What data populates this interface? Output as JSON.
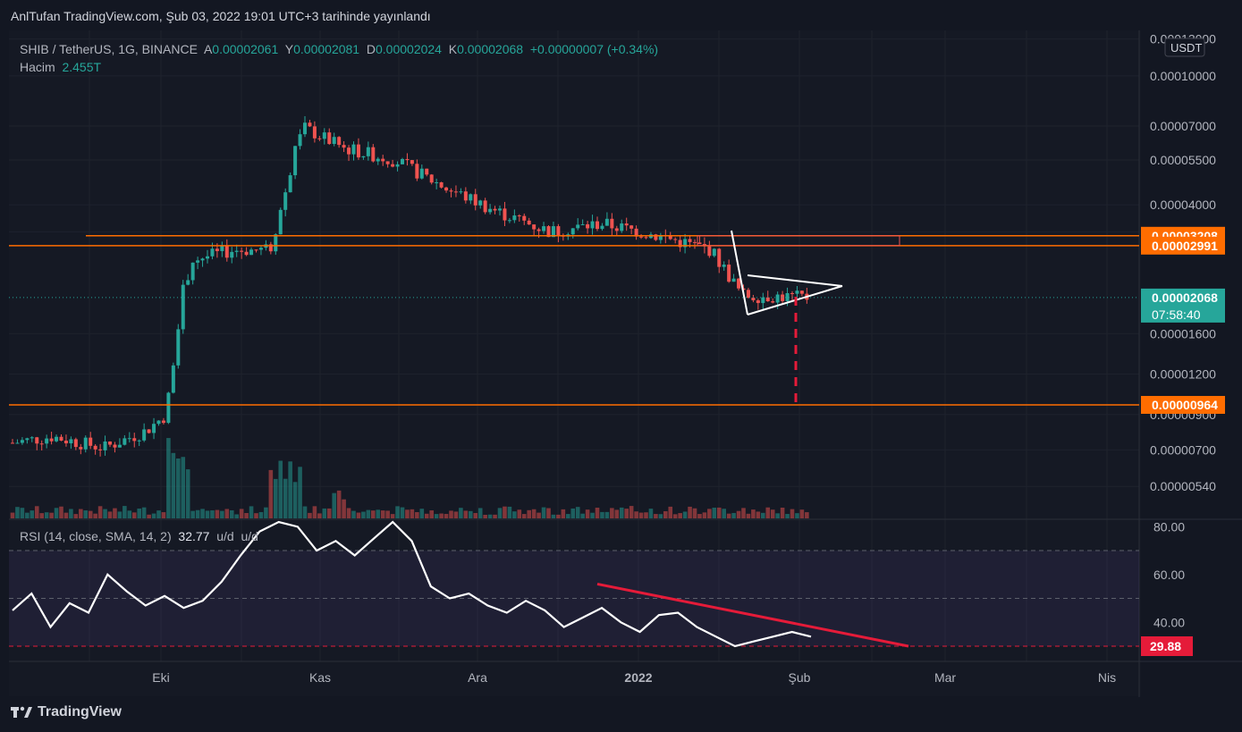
{
  "header": {
    "published": "AnlTufan TradingView.com, Şub 03, 2022 19:01 UTC+3 tarihinde yayınlandı"
  },
  "legend": {
    "symbol": "SHIB / TetherUS, 1G, BINANCE",
    "o_label": "A",
    "o_value": "0.00002061",
    "h_label": "Y",
    "h_value": "0.00002081",
    "l_label": "D",
    "l_value": "0.00002024",
    "c_label": "K",
    "c_value": "0.00002068",
    "change": "+0.00000007 (+0.34%)",
    "volume_label": "Hacim",
    "volume_value": "2.455T"
  },
  "rsi_legend": {
    "text": "RSI (14, close, SMA, 14, 2)",
    "value": "32.77",
    "na1": "u/d",
    "na2": "u/d"
  },
  "footer": {
    "brand": "TradingView"
  },
  "colors": {
    "up": "#26a69a",
    "down": "#ef5350",
    "orange": "#ff6d00",
    "white": "#ffffff",
    "red": "#e51b39"
  },
  "chart_data": [
    {
      "type": "candlestick",
      "title": "SHIB / TetherUS, 1G, BINANCE",
      "y_scale": "log",
      "currency": "USDT",
      "y_ticks": [
        "0.00013000",
        "0.00010000",
        "0.00007000",
        "0.00005500",
        "0.00004000",
        "0.00003300",
        "0.00001600",
        "0.00001200",
        "0.00000900",
        "0.00000700",
        "0.00000540"
      ],
      "x_ticks": [
        "Eki",
        "Kas",
        "Ara",
        "2022",
        "Şub",
        "Mar",
        "Nis"
      ],
      "price_tags": [
        {
          "label": "0.00003208",
          "color": "#ff6d00"
        },
        {
          "label": "0.00002991",
          "color": "#ff6d00"
        },
        {
          "label": "0.00002068",
          "sub": "07:58:40",
          "color": "#26a69a"
        },
        {
          "label": "0.00000964",
          "color": "#ff6d00"
        }
      ],
      "levels": [
        3.208e-05,
        2.991e-05,
        9.64e-06
      ],
      "last_price": 2.068e-05,
      "approx_close_path": [
        [
          "2021-09-01",
          7.3e-06
        ],
        [
          "2021-09-10",
          7.7e-06
        ],
        [
          "2021-09-20",
          7.1e-06
        ],
        [
          "2021-09-28",
          8e-06
        ],
        [
          "2021-10-02",
          9e-06
        ],
        [
          "2021-10-05",
          2.1e-05
        ],
        [
          "2021-10-07",
          2.7e-05
        ],
        [
          "2021-10-15",
          2.9e-05
        ],
        [
          "2021-10-22",
          2.9e-05
        ],
        [
          "2021-10-25",
          4.4e-05
        ],
        [
          "2021-10-28",
          7e-05
        ],
        [
          "2021-11-05",
          6e-05
        ],
        [
          "2021-11-15",
          5.5e-05
        ],
        [
          "2021-11-25",
          4.5e-05
        ],
        [
          "2021-12-05",
          3.8e-05
        ],
        [
          "2021-12-15",
          3.3e-05
        ],
        [
          "2021-12-25",
          3.5e-05
        ],
        [
          "2022-01-05",
          3.2e-05
        ],
        [
          "2022-01-15",
          2.9e-05
        ],
        [
          "2022-01-21",
          2.1e-05
        ],
        [
          "2022-02-03",
          2.068e-05
        ]
      ],
      "annotations": [
        "symmetrical triangle",
        "projected target to 0.00000964"
      ]
    },
    {
      "type": "line",
      "title": "RSI (14, close, SMA, 14, 2)",
      "y_ticks": [
        "80.00",
        "60.00",
        "40.00"
      ],
      "bands": [
        70,
        50,
        30
      ],
      "current_value_tag": "29.88",
      "series": [
        {
          "values": [
            45,
            52,
            38,
            48,
            44,
            60,
            53,
            47,
            51,
            46,
            49,
            57,
            68,
            78,
            85,
            80,
            70,
            74,
            68,
            75,
            83,
            74,
            55,
            50,
            52,
            47,
            44,
            49,
            45,
            38,
            42,
            46,
            40,
            36,
            43,
            44,
            38,
            34,
            30,
            32,
            34,
            36,
            34
          ]
        }
      ],
      "trendline": "descending resistance"
    }
  ]
}
